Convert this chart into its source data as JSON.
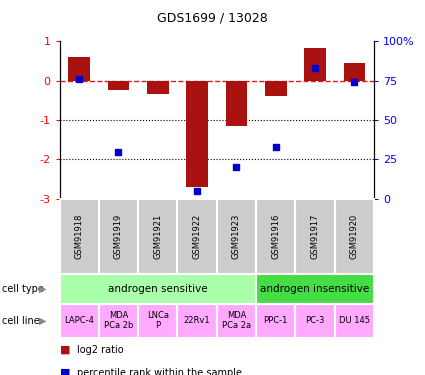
{
  "title": "GDS1699 / 13028",
  "samples": [
    "GSM91918",
    "GSM91919",
    "GSM91921",
    "GSM91922",
    "GSM91923",
    "GSM91916",
    "GSM91917",
    "GSM91920"
  ],
  "log2_ratio": [
    0.6,
    -0.25,
    -0.35,
    -2.7,
    -1.15,
    -0.4,
    0.82,
    0.45
  ],
  "percentile_rank": [
    76,
    30,
    null,
    5,
    20,
    33,
    83,
    74
  ],
  "ylim": [
    -3,
    1
  ],
  "dotted_lines": [
    -1,
    -2
  ],
  "cell_type_groups": [
    {
      "label": "androgen sensitive",
      "start": 0,
      "end": 5,
      "color": "#aaffaa"
    },
    {
      "label": "androgen insensitive",
      "start": 5,
      "end": 8,
      "color": "#44dd44"
    }
  ],
  "cell_lines": [
    {
      "label": "LAPC-4",
      "start": 0,
      "end": 1
    },
    {
      "label": "MDA\nPCa 2b",
      "start": 1,
      "end": 2
    },
    {
      "label": "LNCa\nP",
      "start": 2,
      "end": 3
    },
    {
      "label": "22Rv1",
      "start": 3,
      "end": 4
    },
    {
      "label": "MDA\nPCa 2a",
      "start": 4,
      "end": 5
    },
    {
      "label": "PPC-1",
      "start": 5,
      "end": 6
    },
    {
      "label": "PC-3",
      "start": 6,
      "end": 7
    },
    {
      "label": "DU 145",
      "start": 7,
      "end": 8
    }
  ],
  "cell_line_color": "#ffaaff",
  "bar_color": "#aa1111",
  "dot_color": "#0000cc",
  "dashed_line_color": "#cc2222",
  "sample_box_color": "#cccccc",
  "n": 8
}
